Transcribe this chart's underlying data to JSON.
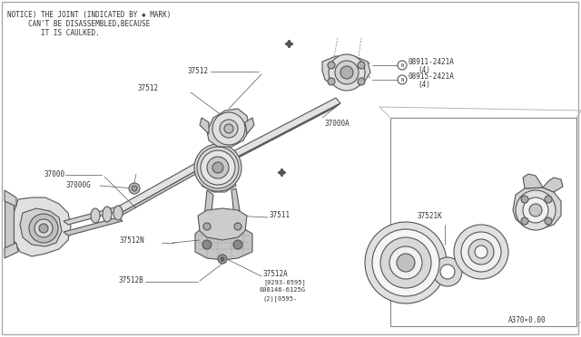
{
  "bg_color": "#ffffff",
  "border_color": "#aaaaaa",
  "line_color": "#555555",
  "text_color": "#333333",
  "fill_light": "#e8e8e8",
  "fill_mid": "#cccccc",
  "fill_dark": "#aaaaaa",
  "notice_lines": [
    "NOTICE) THE JOINT (INDICATED BY ✱ MARK)",
    "     CAN'T BE DISASSEMBLED,BECAUSE",
    "        IT IS CAULKED."
  ],
  "ref_code": "A370∗0.00",
  "figsize": [
    6.4,
    3.72
  ],
  "dpi": 100
}
